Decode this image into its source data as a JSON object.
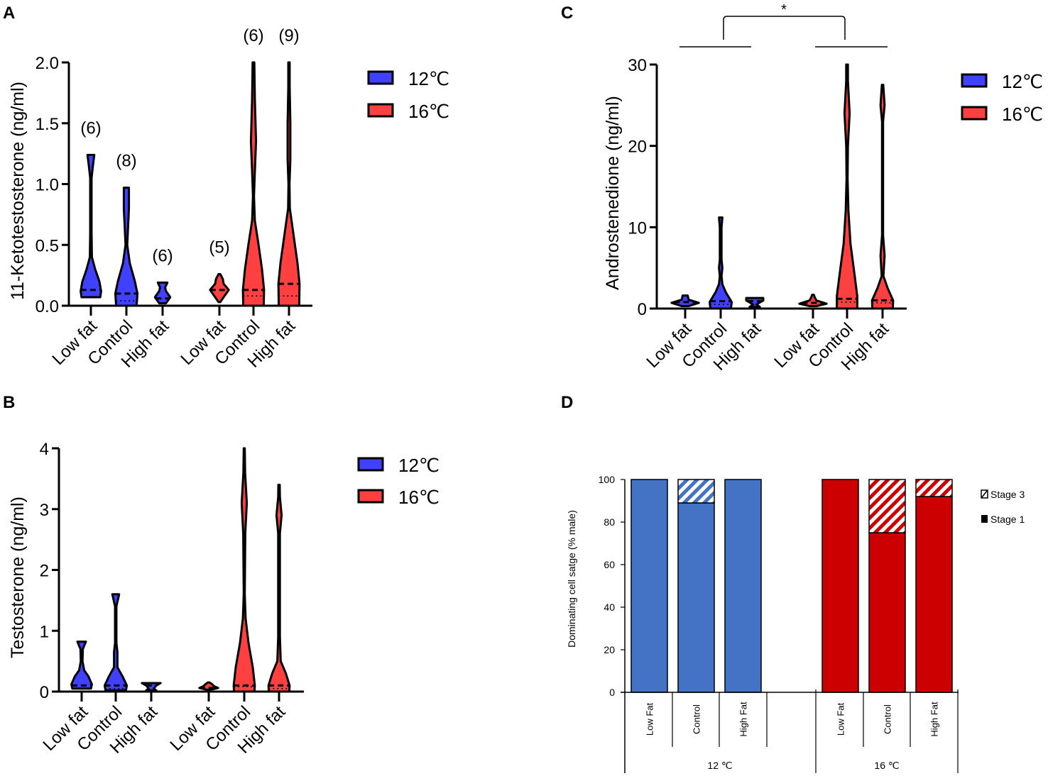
{
  "colors": {
    "blue": "#4040ff",
    "red": "#ff4040",
    "d_blue": "#4472c4",
    "d_red": "#cc0000"
  },
  "chart_data": [
    {
      "panel": "A",
      "type": "violin",
      "ylabel": "11-Ketotestosterone (ng/ml)",
      "ylim": [
        0,
        2.0
      ],
      "yticks": [
        "0.0",
        "0.5",
        "1.0",
        "1.5",
        "2.0"
      ],
      "ytick_values": [
        0,
        0.5,
        1,
        1.5,
        2
      ],
      "legend": [
        {
          "label": "12℃",
          "color": "blue"
        },
        {
          "label": "16℃",
          "color": "red"
        }
      ],
      "groups": [
        {
          "label": "Low fat",
          "temp": "12℃",
          "n": "(6)",
          "median": 0.13,
          "quartile": null,
          "profile": [
            [
              0.07,
              0.55
            ],
            [
              0.12,
              0.6
            ],
            [
              0.2,
              0.5
            ],
            [
              0.3,
              0.25
            ],
            [
              0.4,
              0.06
            ],
            [
              0.6,
              0.04
            ],
            [
              1.05,
              0.04
            ],
            [
              1.15,
              0.12
            ],
            [
              1.24,
              0.2
            ]
          ]
        },
        {
          "label": "Control",
          "temp": "12℃",
          "n": "(8)",
          "median": 0.1,
          "quartile": 0.04,
          "profile": [
            [
              0,
              0.6
            ],
            [
              0.1,
              0.65
            ],
            [
              0.2,
              0.5
            ],
            [
              0.35,
              0.2
            ],
            [
              0.5,
              0.05
            ],
            [
              0.65,
              0.1
            ],
            [
              0.8,
              0.15
            ],
            [
              0.97,
              0.15
            ]
          ]
        },
        {
          "label": "High fat",
          "temp": "12℃",
          "n": "(6)",
          "median": 0.06,
          "quartile": null,
          "profile": [
            [
              0.02,
              0.2
            ],
            [
              0.07,
              0.45
            ],
            [
              0.12,
              0.2
            ],
            [
              0.15,
              0.15
            ],
            [
              0.19,
              0.28
            ]
          ]
        },
        {
          "label": "Low fat",
          "temp": "16℃",
          "n": "(5)",
          "median": 0.13,
          "quartile": null,
          "profile": [
            [
              0.03,
              0.05
            ],
            [
              0.08,
              0.3
            ],
            [
              0.13,
              0.55
            ],
            [
              0.18,
              0.25
            ],
            [
              0.22,
              0.2
            ],
            [
              0.26,
              0.05
            ]
          ]
        },
        {
          "label": "Control",
          "temp": "16℃",
          "n": "(6)",
          "median": 0.13,
          "quartile": 0.08,
          "profile": [
            [
              0,
              0.6
            ],
            [
              0.13,
              0.62
            ],
            [
              0.3,
              0.5
            ],
            [
              0.5,
              0.3
            ],
            [
              0.7,
              0.08
            ],
            [
              0.9,
              0.03
            ],
            [
              1.1,
              0.08
            ],
            [
              1.35,
              0.15
            ],
            [
              1.7,
              0.08
            ],
            [
              2.0,
              0.05
            ]
          ]
        },
        {
          "label": "High fat",
          "temp": "16℃",
          "n": "(9)",
          "median": 0.18,
          "quartile": 0.08,
          "profile": [
            [
              0,
              0.6
            ],
            [
              0.18,
              0.62
            ],
            [
              0.35,
              0.5
            ],
            [
              0.55,
              0.3
            ],
            [
              0.8,
              0.05
            ],
            [
              1.0,
              0.03
            ],
            [
              1.2,
              0.08
            ],
            [
              1.5,
              0.08
            ],
            [
              1.8,
              0.04
            ],
            [
              2.0,
              0.04
            ]
          ]
        }
      ]
    },
    {
      "panel": "B",
      "type": "violin",
      "ylabel": "Testosterone (ng/ml)",
      "ylim": [
        0,
        4
      ],
      "yticks": [
        "0",
        "1",
        "2",
        "3",
        "4"
      ],
      "ytick_values": [
        0,
        1,
        2,
        3,
        4
      ],
      "legend": [
        {
          "label": "12℃",
          "color": "blue"
        },
        {
          "label": "16℃",
          "color": "red"
        }
      ],
      "groups": [
        {
          "label": "Low fat",
          "temp": "12℃",
          "median": 0.1,
          "quartile": null,
          "profile": [
            [
              0.05,
              0.55
            ],
            [
              0.12,
              0.6
            ],
            [
              0.25,
              0.4
            ],
            [
              0.35,
              0.15
            ],
            [
              0.5,
              0.05
            ],
            [
              0.7,
              0.07
            ],
            [
              0.82,
              0.25
            ]
          ]
        },
        {
          "label": "Control",
          "temp": "12℃",
          "median": 0.1,
          "quartile": 0.05,
          "profile": [
            [
              0.02,
              0.6
            ],
            [
              0.1,
              0.65
            ],
            [
              0.25,
              0.4
            ],
            [
              0.4,
              0.1
            ],
            [
              0.55,
              0.1
            ],
            [
              0.65,
              0.1
            ],
            [
              0.8,
              0.04
            ],
            [
              1.4,
              0.04
            ],
            [
              1.6,
              0.2
            ]
          ]
        },
        {
          "label": "High fat",
          "temp": "12℃",
          "median": 0.1,
          "quartile": null,
          "profile": [
            [
              0.02,
              0.3
            ],
            [
              0.05,
              0.15
            ],
            [
              0.1,
              0.3
            ],
            [
              0.14,
              0.55
            ]
          ]
        },
        {
          "label": "Low fat",
          "temp": "16℃",
          "median": 0.06,
          "quartile": null,
          "profile": [
            [
              0.03,
              0.1
            ],
            [
              0.06,
              0.55
            ],
            [
              0.09,
              0.3
            ],
            [
              0.12,
              0.2
            ],
            [
              0.15,
              0.05
            ]
          ]
        },
        {
          "label": "Control",
          "temp": "16℃",
          "median": 0.1,
          "quartile": 0.08,
          "profile": [
            [
              0,
              0.6
            ],
            [
              0.1,
              0.62
            ],
            [
              0.4,
              0.5
            ],
            [
              0.8,
              0.25
            ],
            [
              1.2,
              0.08
            ],
            [
              1.6,
              0.03
            ],
            [
              2.6,
              0.06
            ],
            [
              3.1,
              0.15
            ],
            [
              3.6,
              0.05
            ],
            [
              4.0,
              0.03
            ]
          ]
        },
        {
          "label": "High fat",
          "temp": "16℃",
          "median": 0.1,
          "quartile": 0.05,
          "profile": [
            [
              0,
              0.6
            ],
            [
              0.1,
              0.62
            ],
            [
              0.3,
              0.4
            ],
            [
              0.5,
              0.1
            ],
            [
              0.9,
              0.05
            ],
            [
              2.6,
              0.05
            ],
            [
              2.9,
              0.15
            ],
            [
              3.2,
              0.05
            ],
            [
              3.4,
              0.04
            ]
          ]
        }
      ]
    },
    {
      "panel": "C",
      "type": "violin",
      "ylabel": "Androstenedione (ng/ml)",
      "ylim": [
        0,
        30
      ],
      "yticks": [
        "0",
        "10",
        "20",
        "30"
      ],
      "ytick_values": [
        0,
        10,
        20,
        30
      ],
      "significance": "*",
      "legend": [
        {
          "label": "12℃",
          "color": "blue"
        },
        {
          "label": "16℃",
          "color": "red"
        }
      ],
      "groups": [
        {
          "label": "Low fat",
          "temp": "12℃",
          "median": 0.8,
          "quartile": null,
          "profile": [
            [
              0.3,
              0.2
            ],
            [
              0.7,
              0.8
            ],
            [
              1.1,
              0.2
            ],
            [
              1.6,
              0.15
            ]
          ]
        },
        {
          "label": "Control",
          "temp": "12℃",
          "median": 0.9,
          "quartile": 0.5,
          "profile": [
            [
              0,
              0.6
            ],
            [
              0.8,
              0.65
            ],
            [
              2,
              0.3
            ],
            [
              3,
              0.1
            ],
            [
              4,
              0.05
            ],
            [
              5,
              0.1
            ],
            [
              6,
              0.05
            ],
            [
              10,
              0.05
            ],
            [
              11.2,
              0.1
            ]
          ]
        },
        {
          "label": "High fat",
          "temp": "12℃",
          "median": 0.9,
          "quartile": null,
          "profile": [
            [
              0.2,
              0.3
            ],
            [
              0.5,
              0.1
            ],
            [
              1,
              0.5
            ],
            [
              1.3,
              0.5
            ]
          ]
        },
        {
          "label": "Low fat",
          "temp": "16℃",
          "median": 0.7,
          "quartile": null,
          "profile": [
            [
              0.3,
              0.2
            ],
            [
              0.6,
              0.8
            ],
            [
              1,
              0.2
            ],
            [
              1.4,
              0.1
            ],
            [
              1.7,
              0.05
            ]
          ]
        },
        {
          "label": "Control",
          "temp": "16℃",
          "median": 1.2,
          "quartile": 0.8,
          "profile": [
            [
              0,
              0.6
            ],
            [
              1.5,
              0.6
            ],
            [
              4,
              0.45
            ],
            [
              8,
              0.2
            ],
            [
              12,
              0.08
            ],
            [
              16,
              0.03
            ],
            [
              20,
              0.05
            ],
            [
              24,
              0.15
            ],
            [
              28,
              0.05
            ],
            [
              30,
              0.05
            ]
          ]
        },
        {
          "label": "High fat",
          "temp": "16℃",
          "median": 1.0,
          "quartile": 0.7,
          "profile": [
            [
              0,
              0.6
            ],
            [
              1,
              0.62
            ],
            [
              2.5,
              0.3
            ],
            [
              4,
              0.05
            ],
            [
              6.5,
              0.12
            ],
            [
              9,
              0.03
            ],
            [
              23,
              0.03
            ],
            [
              25,
              0.12
            ],
            [
              27.5,
              0.04
            ]
          ]
        }
      ]
    },
    {
      "panel": "D",
      "type": "bar",
      "stacked": true,
      "ylabel": "Dominating cell satge (%  male)",
      "ylim": [
        0,
        100
      ],
      "yticks": [
        "0",
        "20",
        "40",
        "60",
        "80",
        "100"
      ],
      "ytick_values": [
        0,
        20,
        40,
        60,
        80,
        100
      ],
      "categories": [
        "Low Fat",
        "Control",
        "High Fat",
        "Low Fat",
        "Control",
        "High Fat"
      ],
      "group_labels": [
        "12 ℃",
        "16 ℃"
      ],
      "series": [
        {
          "name": "Stage 1",
          "values": [
            100,
            89,
            100,
            100,
            75,
            92
          ]
        },
        {
          "name": "Stage 3",
          "values": [
            0,
            11,
            0,
            0,
            25,
            8
          ]
        }
      ],
      "legend": [
        "Stage 3",
        "Stage 1"
      ]
    }
  ]
}
